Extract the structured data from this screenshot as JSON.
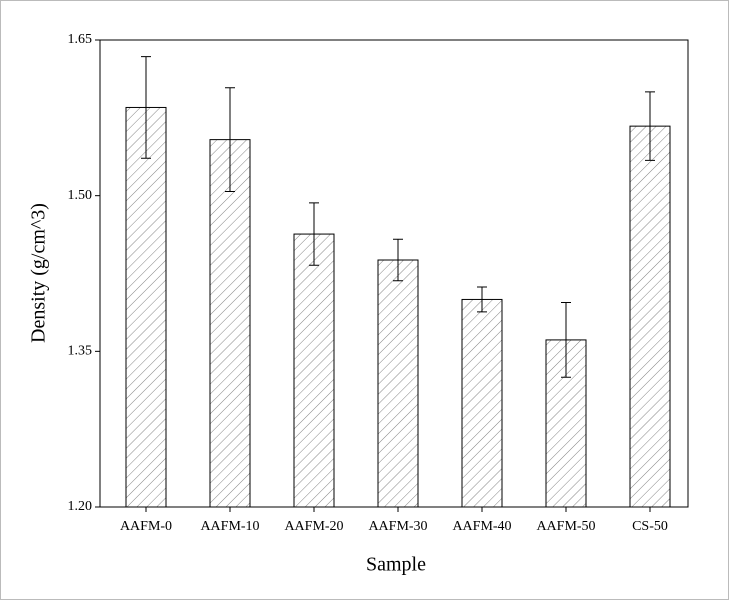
{
  "chart_data": {
    "type": "bar",
    "x_label": "Sample",
    "y_label": "Density (g/cm^3)",
    "categories": [
      "AAFM-0",
      "AAFM-10",
      "AAFM-20",
      "AAFM-30",
      "AAFM-40",
      "AAFM-50",
      "CS-50"
    ],
    "values": [
      1.585,
      1.554,
      1.463,
      1.438,
      1.4,
      1.361,
      1.567
    ],
    "errors": [
      0.049,
      0.05,
      0.03,
      0.02,
      0.012,
      0.036,
      0.033
    ],
    "color": "#555555",
    "ylim": [
      1.2,
      1.65
    ],
    "yticks": [
      {
        "value": 1.2,
        "label": "1.20"
      },
      {
        "value": 1.35,
        "label": "1.35"
      },
      {
        "value": 1.5,
        "label": "1.50"
      },
      {
        "value": 1.65,
        "label": "1.65"
      }
    ],
    "grid": false
  }
}
